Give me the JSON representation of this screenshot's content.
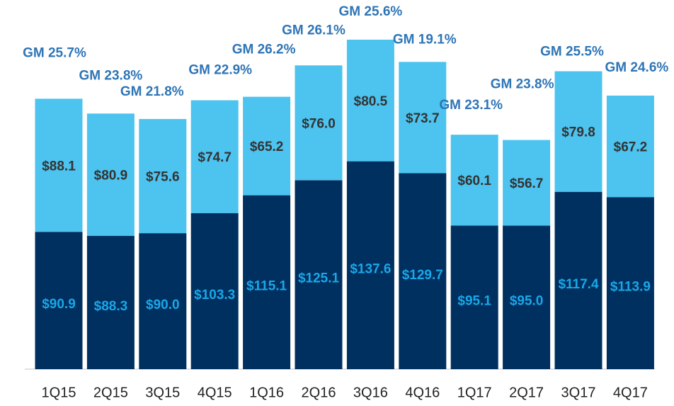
{
  "chart_data": {
    "type": "stacked_bar",
    "categories": [
      "1Q15",
      "2Q15",
      "3Q15",
      "4Q15",
      "1Q16",
      "2Q16",
      "3Q16",
      "4Q16",
      "1Q17",
      "2Q17",
      "3Q17",
      "4Q17"
    ],
    "series": [
      {
        "color": "#00305f",
        "label_color": "#1aa7e8",
        "values": [
          90.9,
          88.3,
          90.0,
          103.3,
          115.1,
          125.1,
          137.6,
          129.7,
          95.1,
          95.0,
          117.4,
          113.9
        ],
        "value_labels": [
          "$90.9",
          "$88.3",
          "$90.0",
          "$103.3",
          "$115.1",
          "$125.1",
          "$137.6",
          "$129.7",
          "$95.1",
          "$95.0",
          "$117.4",
          "$113.9"
        ]
      },
      {
        "color": "#4dc3ef",
        "label_color": "#333333",
        "values": [
          88.1,
          80.9,
          75.6,
          74.7,
          65.2,
          76.0,
          80.5,
          73.7,
          60.1,
          56.7,
          79.8,
          67.2
        ],
        "value_labels": [
          "$88.1",
          "$80.9",
          "$75.6",
          "$74.7",
          "$65.2",
          "$76.0",
          "$80.5",
          "$73.7",
          "$60.1",
          "$56.7",
          "$79.8",
          "$67.2"
        ]
      }
    ],
    "annotations": [
      "GM 25.7%",
      "GM 23.8%",
      "GM 21.8%",
      "GM 22.9%",
      "GM 26.2%",
      "GM 26.1%",
      "GM 25.6%",
      "GM 19.1%",
      "GM 23.1%",
      "GM 23.8%",
      "GM 25.5%",
      "GM 24.6%"
    ],
    "annotation_color": "#2e75b6",
    "ylim": [
      0,
      240
    ]
  }
}
